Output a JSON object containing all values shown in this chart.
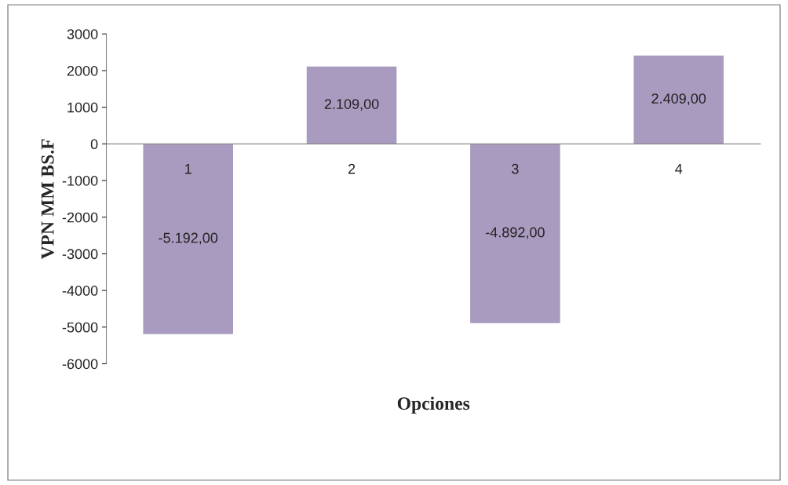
{
  "chart_data": {
    "type": "bar",
    "xlabel": "Opciones",
    "ylabel": "VPN MM BS.F",
    "categories": [
      "1",
      "2",
      "3",
      "4"
    ],
    "values": [
      -5192,
      2109,
      -4892,
      2409
    ],
    "value_labels": [
      "-5.192,00",
      "2.109,00",
      "-4.892,00",
      "2.409,00"
    ],
    "color": "#a99bbf",
    "ylim": [
      -6000,
      3000
    ],
    "yticks": [
      -6000,
      -5000,
      -4000,
      -3000,
      -2000,
      -1000,
      0,
      1000,
      2000,
      3000
    ],
    "grid": false,
    "legend": false
  }
}
